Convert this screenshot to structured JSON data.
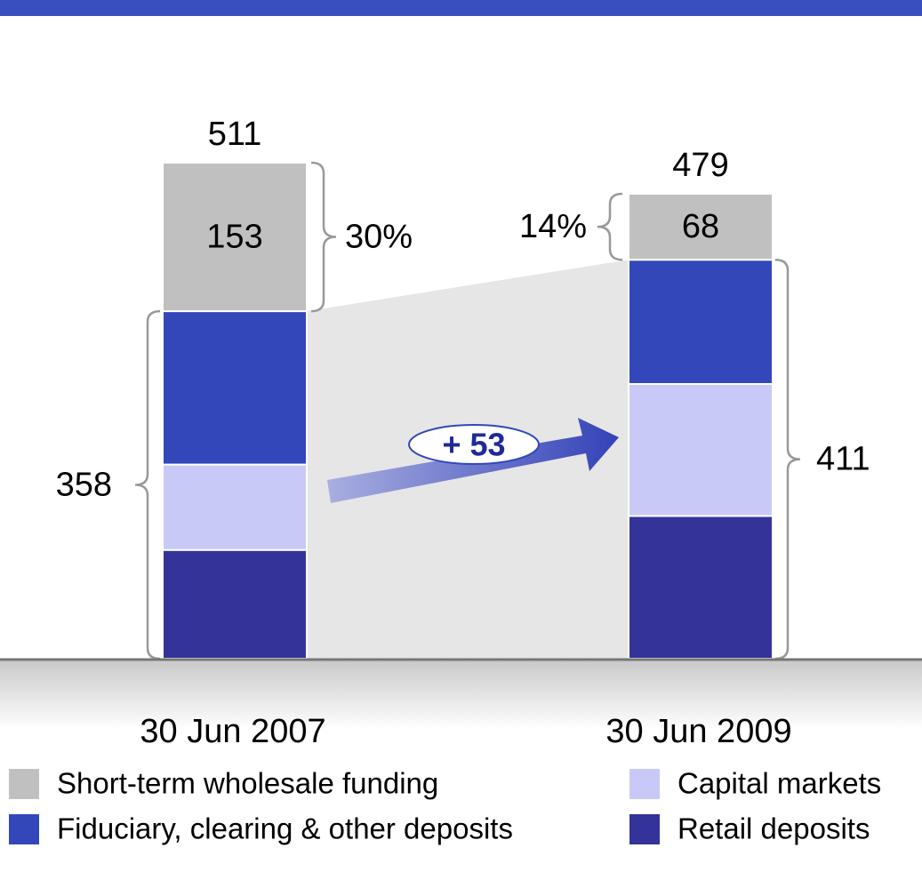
{
  "chart_data": {
    "type": "stacked_bar",
    "categories": [
      "30 Jun 2007",
      "30 Jun 2009"
    ],
    "series": [
      {
        "name": "Retail deposits",
        "color": "#333399",
        "values": [
          112,
          147
        ]
      },
      {
        "name": "Capital markets",
        "color": "#c9c9f7",
        "values": [
          88,
          136
        ]
      },
      {
        "name": "Fiduciary, clearing & other deposits",
        "color": "#3347bb",
        "values": [
          158,
          128
        ]
      },
      {
        "name": "Short-term wholesale funding",
        "color": "#c0c0c0",
        "values": [
          153,
          68
        ],
        "show_values": true
      }
    ],
    "totals": [
      511,
      479
    ],
    "deposit_totals": [
      358,
      411
    ],
    "wholesale_shares": {
      "values": [
        30,
        14
      ],
      "value_labels": [
        "30%",
        "14%"
      ]
    },
    "change": {
      "value": 53,
      "label": "+ 53"
    }
  }
}
